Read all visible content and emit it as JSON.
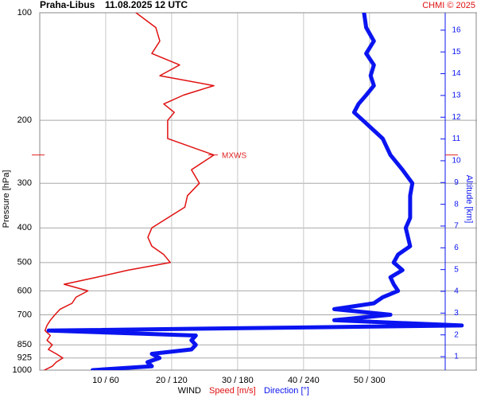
{
  "chart_data": {
    "type": "profile",
    "title": "Praha-Libus",
    "subtitle": "11.08.2025 12 UTC",
    "credit": "CHMI © 2025",
    "y_label": "Pressure [hPa]",
    "y2_label": "Altitude [km]",
    "x_label": "WIND",
    "x_label_speed": "Speed [m/s]",
    "x_label_direction": "Direction [°]",
    "y_log": true,
    "grid": true,
    "ylim": [
      1000,
      100
    ],
    "yticks": [
      100,
      200,
      300,
      400,
      500,
      600,
      700,
      850,
      925,
      1000
    ],
    "y2lim": [
      0.38,
      16.8
    ],
    "y2ticks": [
      1,
      2,
      3,
      4,
      5,
      6,
      7,
      8,
      9,
      10,
      11,
      12,
      13,
      14,
      15,
      16
    ],
    "xlim": [
      0,
      66.3
    ],
    "x2lim": [
      0,
      397.8
    ],
    "xticks": [
      {
        "value": 10,
        "label": "10 / 60"
      },
      {
        "value": 20,
        "label": "20 / 120"
      },
      {
        "value": 30,
        "label": "30 / 180"
      },
      {
        "value": 40,
        "label": "40 / 240"
      },
      {
        "value": 50,
        "label": "50 / 300"
      }
    ],
    "annotation": {
      "text": "MXWS",
      "y": 250,
      "color": "#e02020"
    },
    "y": [
      1000,
      975,
      950,
      925,
      900,
      875,
      850,
      825,
      800,
      775,
      750,
      725,
      700,
      675,
      650,
      625,
      600,
      575,
      550,
      525,
      500,
      475,
      450,
      425,
      400,
      375,
      350,
      325,
      300,
      275,
      250,
      225,
      200,
      190,
      180,
      170,
      160,
      150,
      140,
      130,
      120,
      110,
      100
    ],
    "series": [
      {
        "name": "Speed",
        "color": "#e01010",
        "axis": "x",
        "values": [
          0.7,
          1.9,
          2.5,
          3.5,
          2.5,
          1.3,
          1.9,
          1.1,
          1.6,
          0.8,
          1.1,
          1.6,
          2.3,
          3.1,
          4.9,
          5.5,
          7.3,
          3.7,
          8.6,
          13.4,
          19.8,
          18.8,
          17,
          16.4,
          17,
          19.4,
          22,
          22.4,
          24.2,
          23,
          26.4,
          19.4,
          19.4,
          20.4,
          18.8,
          21.8,
          26.4,
          18.2,
          21.2,
          17,
          18.2,
          17.6,
          14.6
        ]
      },
      {
        "name": "Direction",
        "color": "#0a14f0",
        "axis": "x2",
        "values": [
          48,
          102,
          98,
          109,
          102,
          138,
          142,
          138,
          142,
          8,
          384,
          268,
          319,
          268,
          304,
          312,
          326,
          322,
          319,
          330,
          322,
          326,
          337,
          335,
          333,
          337,
          337,
          337,
          339,
          330,
          319,
          312,
          294,
          286,
          290,
          297,
          304,
          301,
          304,
          297,
          304,
          297,
          295
        ]
      }
    ]
  }
}
